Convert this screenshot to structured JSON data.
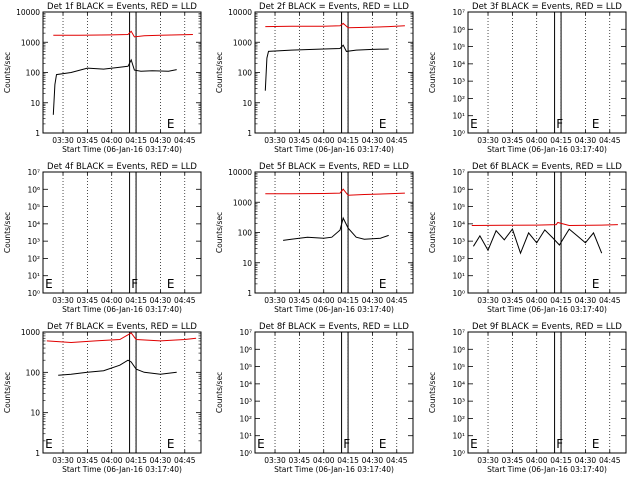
{
  "figure": {
    "common_xlabel": "Start Time (06-Jan-16 03:17:40)",
    "ylabel": "Counts/sec",
    "x_ticks": [
      "03:30",
      "03:45",
      "04:00",
      "04:15",
      "04:30",
      "04:45"
    ],
    "colors": {
      "events": "#000000",
      "lld": "#e00000",
      "frame": "#000000"
    }
  },
  "chart_data": [
    {
      "type": "line",
      "title": "Det 1f BLACK = Events, RED = LLD",
      "y_scale": "log",
      "ylim": [
        1,
        10000
      ],
      "y_tick_labels": [
        "1",
        "10",
        "100",
        "1000",
        "10000"
      ],
      "xlim": [
        "03:17:40",
        "04:55:00"
      ],
      "vertical_lines": [
        "04:11",
        "04:15"
      ],
      "annotations": [
        {
          "text": "E",
          "x": "04:34"
        }
      ],
      "series": [
        {
          "name": "LLD",
          "color": "#e00000",
          "x": [
            "03:24",
            "03:40",
            "04:00",
            "04:10",
            "04:12",
            "04:14",
            "04:20",
            "04:30",
            "04:40",
            "04:50"
          ],
          "y": [
            1700,
            1700,
            1750,
            1800,
            2300,
            1500,
            1650,
            1700,
            1750,
            1800
          ]
        },
        {
          "name": "Events",
          "color": "#000000",
          "x": [
            "03:24",
            "03:25",
            "03:26",
            "03:35",
            "03:45",
            "03:55",
            "04:05",
            "04:10",
            "04:12",
            "04:14",
            "04:18",
            "04:25",
            "04:35",
            "04:40"
          ],
          "y": [
            4,
            40,
            85,
            100,
            140,
            130,
            150,
            160,
            260,
            120,
            110,
            115,
            110,
            125
          ]
        }
      ]
    },
    {
      "type": "line",
      "title": "Det 2f BLACK = Events, RED = LLD",
      "y_scale": "log",
      "ylim": [
        1,
        10000
      ],
      "y_tick_labels": [
        "1",
        "10",
        "100",
        "1000",
        "10000"
      ],
      "xlim": [
        "03:17:40",
        "04:55:00"
      ],
      "vertical_lines": [
        "04:11",
        "04:15"
      ],
      "annotations": [
        {
          "text": "E",
          "x": "04:34"
        }
      ],
      "series": [
        {
          "name": "LLD",
          "color": "#e00000",
          "x": [
            "03:24",
            "03:40",
            "04:00",
            "04:10",
            "04:12",
            "04:15",
            "04:25",
            "04:40",
            "04:50"
          ],
          "y": [
            3300,
            3400,
            3400,
            3500,
            4200,
            3000,
            3100,
            3300,
            3500
          ]
        },
        {
          "name": "Events",
          "color": "#000000",
          "x": [
            "03:24",
            "03:25",
            "03:26",
            "03:40",
            "04:00",
            "04:10",
            "04:12",
            "04:14",
            "04:20",
            "04:30",
            "04:40"
          ],
          "y": [
            25,
            300,
            500,
            550,
            600,
            620,
            800,
            500,
            550,
            580,
            600
          ]
        }
      ]
    },
    {
      "type": "line",
      "title": "Det 3f BLACK = Events, RED = LLD",
      "y_scale": "log",
      "ylim": [
        1,
        10000000
      ],
      "y_tick_labels": [
        "10⁰",
        "10¹",
        "10²",
        "10³",
        "10⁴",
        "10⁵",
        "10⁶",
        "10⁷"
      ],
      "xlim": [
        "03:17:40",
        "04:55:00"
      ],
      "vertical_lines": [
        "04:11",
        "04:15"
      ],
      "annotations": [
        {
          "text": "E",
          "x": "03:19"
        },
        {
          "text": "F",
          "x": "04:12"
        },
        {
          "text": "E",
          "x": "04:34"
        }
      ],
      "series": []
    },
    {
      "type": "line",
      "title": "Det 4f BLACK = Events, RED = LLD",
      "y_scale": "log",
      "ylim": [
        1,
        10000000
      ],
      "y_tick_labels": [
        "10⁰",
        "10¹",
        "10²",
        "10³",
        "10⁴",
        "10⁵",
        "10⁶",
        "10⁷"
      ],
      "xlim": [
        "03:17:40",
        "04:55:00"
      ],
      "vertical_lines": [
        "04:11",
        "04:15"
      ],
      "annotations": [
        {
          "text": "E",
          "x": "03:19"
        },
        {
          "text": "F",
          "x": "04:12"
        },
        {
          "text": "E",
          "x": "04:34"
        }
      ],
      "series": []
    },
    {
      "type": "line",
      "title": "Det 5f BLACK = Events, RED = LLD",
      "y_scale": "log",
      "ylim": [
        1,
        10000
      ],
      "y_tick_labels": [
        "1",
        "10",
        "100",
        "1000",
        "10000"
      ],
      "xlim": [
        "03:17:40",
        "04:55:00"
      ],
      "vertical_lines": [
        "04:11",
        "04:15"
      ],
      "annotations": [
        {
          "text": "E",
          "x": "04:34"
        }
      ],
      "series": [
        {
          "name": "LLD",
          "color": "#e00000",
          "x": [
            "03:24",
            "03:40",
            "04:00",
            "04:10",
            "04:12",
            "04:15",
            "04:25",
            "04:40",
            "04:50"
          ],
          "y": [
            1900,
            1900,
            1950,
            2000,
            2700,
            1700,
            1800,
            1900,
            2000
          ]
        },
        {
          "name": "Events",
          "color": "#000000",
          "x": [
            "03:35",
            "03:40",
            "03:50",
            "04:00",
            "04:05",
            "04:10",
            "04:12",
            "04:15",
            "04:20",
            "04:25",
            "04:35",
            "04:40"
          ],
          "y": [
            55,
            60,
            70,
            65,
            70,
            120,
            300,
            140,
            70,
            60,
            65,
            80
          ]
        }
      ]
    },
    {
      "type": "line",
      "title": "Det 6f BLACK = Events, RED = LLD",
      "y_scale": "log",
      "ylim": [
        1,
        10000000
      ],
      "y_tick_labels": [
        "10⁰",
        "10¹",
        "10²",
        "10³",
        "10⁴",
        "10⁵",
        "10⁶",
        "10⁷"
      ],
      "xlim": [
        "03:17:40",
        "04:55:00"
      ],
      "vertical_lines": [
        "04:11",
        "04:15"
      ],
      "annotations": [
        {
          "text": "E",
          "x": "04:34"
        }
      ],
      "series": [
        {
          "name": "LLD",
          "color": "#e00000",
          "x": [
            "03:20",
            "03:40",
            "04:00",
            "04:12",
            "04:13",
            "04:20",
            "04:40",
            "04:50"
          ],
          "y": [
            8000,
            8200,
            8500,
            9000,
            12000,
            8000,
            8500,
            9000
          ]
        },
        {
          "name": "Events",
          "color": "#000000",
          "x": [
            "03:21",
            "03:25",
            "03:30",
            "03:35",
            "03:40",
            "03:45",
            "03:50",
            "03:55",
            "04:00",
            "04:05",
            "04:10",
            "04:14",
            "04:20",
            "04:25",
            "04:30",
            "04:35",
            "04:40"
          ],
          "y": [
            500,
            2000,
            300,
            4000,
            1200,
            5000,
            200,
            3000,
            800,
            4500,
            1500,
            600,
            5000,
            2000,
            800,
            3000,
            200
          ]
        }
      ]
    },
    {
      "type": "line",
      "title": "Det 7f BLACK = Events, RED = LLD",
      "y_scale": "log",
      "ylim": [
        1,
        1000
      ],
      "y_tick_labels": [
        "1",
        "10",
        "100",
        "1000"
      ],
      "xlim": [
        "03:17:40",
        "04:55:00"
      ],
      "vertical_lines": [
        "04:11",
        "04:15"
      ],
      "annotations": [
        {
          "text": "E",
          "x": "03:19"
        },
        {
          "text": "E",
          "x": "04:34"
        }
      ],
      "series": [
        {
          "name": "LLD",
          "color": "#e00000",
          "x": [
            "03:20",
            "03:35",
            "03:50",
            "04:05",
            "04:10",
            "04:12",
            "04:15",
            "04:30",
            "04:45",
            "04:52"
          ],
          "y": [
            600,
            550,
            600,
            650,
            850,
            950,
            650,
            600,
            650,
            700
          ]
        },
        {
          "name": "Events",
          "color": "#000000",
          "x": [
            "03:27",
            "03:35",
            "03:45",
            "03:55",
            "04:05",
            "04:10",
            "04:12",
            "04:15",
            "04:20",
            "04:30",
            "04:40"
          ],
          "y": [
            85,
            90,
            100,
            110,
            150,
            200,
            180,
            120,
            100,
            90,
            100
          ]
        }
      ]
    },
    {
      "type": "line",
      "title": "Det 8f BLACK = Events, RED = LLD",
      "y_scale": "log",
      "ylim": [
        1,
        10000000
      ],
      "y_tick_labels": [
        "10⁰",
        "10¹",
        "10²",
        "10³",
        "10⁴",
        "10⁵",
        "10⁶",
        "10⁷"
      ],
      "xlim": [
        "03:17:40",
        "04:55:00"
      ],
      "vertical_lines": [
        "04:11",
        "04:15"
      ],
      "annotations": [
        {
          "text": "E",
          "x": "03:19"
        },
        {
          "text": "F",
          "x": "04:12"
        },
        {
          "text": "E",
          "x": "04:34"
        }
      ],
      "series": []
    },
    {
      "type": "line",
      "title": "Det 9f BLACK = Events, RED = LLD",
      "y_scale": "log",
      "ylim": [
        1,
        10000000
      ],
      "y_tick_labels": [
        "10⁰",
        "10¹",
        "10²",
        "10³",
        "10⁴",
        "10⁵",
        "10⁶",
        "10⁷"
      ],
      "xlim": [
        "03:17:40",
        "04:55:00"
      ],
      "vertical_lines": [
        "04:11",
        "04:15"
      ],
      "annotations": [
        {
          "text": "E",
          "x": "03:19"
        },
        {
          "text": "F",
          "x": "04:12"
        },
        {
          "text": "E",
          "x": "04:34"
        }
      ],
      "series": []
    }
  ]
}
